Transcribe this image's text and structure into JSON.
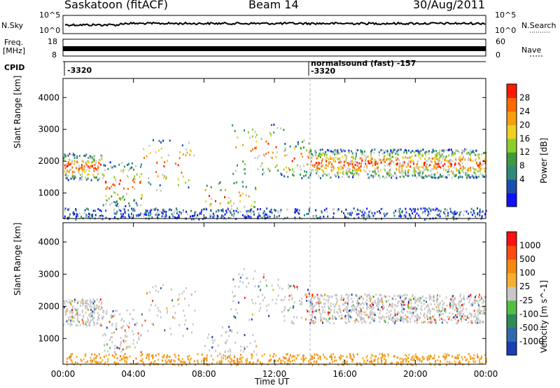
{
  "header": {
    "station": "Saskatoon (fitACF)",
    "beam": "Beam 14",
    "date": "30/Aug/2011"
  },
  "strip_panels": {
    "nsky": {
      "label": "N.Sky",
      "left_ticks": [
        "10^5",
        "10^0"
      ],
      "right_label": "N.Search",
      "right_ticks": [
        "10^5",
        "10^0"
      ]
    },
    "freq": {
      "label_top": "Freq.",
      "label_unit": "[MHz]",
      "left_ticks": [
        "18",
        "8"
      ],
      "right_label": "Nave",
      "right_ticks": [
        "60",
        "0"
      ]
    },
    "cpid": {
      "label": "CPID",
      "entries": [
        {
          "text": "-3320"
        },
        {
          "text": "normalsound (fast) -157"
        },
        {
          "text": "-3320"
        }
      ]
    }
  },
  "chart_data": [
    {
      "type": "heatmap",
      "panel": "power",
      "ylabel": "Slant Range [km]",
      "yticks": [
        "1000",
        "2000",
        "3000",
        "4000"
      ],
      "ylim": [
        200,
        4600
      ],
      "xlim": [
        0,
        24
      ],
      "colorbar": {
        "label": "Power [dB]",
        "ticks": [
          "28",
          "24",
          "20",
          "16",
          "12",
          "8",
          "4"
        ],
        "colors": [
          "#1010ff",
          "#1a4fb0",
          "#2f8a78",
          "#3e9a3e",
          "#8ccf2a",
          "#f0d020",
          "#f5a010",
          "#ff6a00",
          "#ff1a00"
        ]
      }
    },
    {
      "type": "heatmap",
      "panel": "velocity",
      "ylabel": "Slant Range [km]",
      "yticks": [
        "1000",
        "2000",
        "3000",
        "4000"
      ],
      "ylim": [
        200,
        4600
      ],
      "xlim": [
        0,
        24
      ],
      "xticks": [
        "00:00",
        "04:00",
        "08:00",
        "12:00",
        "16:00",
        "20:00",
        "00:00"
      ],
      "xlabel": "Time UT",
      "colorbar": {
        "label": "Velocity [m s^-1]",
        "ticks": [
          "1000",
          "500",
          "100",
          "25",
          "-25",
          "-100",
          "-500",
          "-1000"
        ],
        "colors": [
          "#1a3fb0",
          "#2f6ab0",
          "#2f8a5a",
          "#50c040",
          "#c8c8c8",
          "#f5b030",
          "#f58a10",
          "#ff4a10",
          "#ff1010"
        ]
      }
    }
  ]
}
